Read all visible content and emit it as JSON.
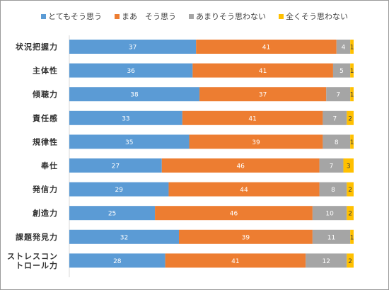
{
  "chart_data": {
    "type": "bar",
    "orientation": "horizontal",
    "stacked": true,
    "percent_stacked": true,
    "legend_position": "top",
    "grid": false,
    "categories": [
      "状況把握力",
      "主体性",
      "傾聴力",
      "責任感",
      "規律性",
      "奉仕",
      "発信力",
      "創造力",
      "課題発見力",
      "ストレスコントロール力"
    ],
    "category_labels": [
      [
        "状況把握力"
      ],
      [
        "主体性"
      ],
      [
        "傾聴力"
      ],
      [
        "責任感"
      ],
      [
        "規律性"
      ],
      [
        "奉仕"
      ],
      [
        "発信力"
      ],
      [
        "創造力"
      ],
      [
        "課題発見力"
      ],
      [
        "ストレスコン",
        "トロール力"
      ]
    ],
    "series": [
      {
        "name": "とてもそう思う",
        "color": "#5b9bd5",
        "values": [
          37,
          36,
          38,
          33,
          35,
          27,
          29,
          25,
          32,
          28
        ]
      },
      {
        "name": "まあ　そう思う",
        "color": "#ed7d31",
        "values": [
          41,
          41,
          37,
          41,
          39,
          46,
          44,
          46,
          39,
          41
        ]
      },
      {
        "name": "あまりそう思わない",
        "color": "#a5a5a5",
        "values": [
          4,
          5,
          7,
          7,
          8,
          7,
          8,
          10,
          11,
          12
        ]
      },
      {
        "name": "全くそう思わない",
        "color": "#ffc000",
        "values": [
          1,
          1,
          1,
          2,
          1,
          3,
          2,
          2,
          1,
          2
        ]
      }
    ]
  }
}
